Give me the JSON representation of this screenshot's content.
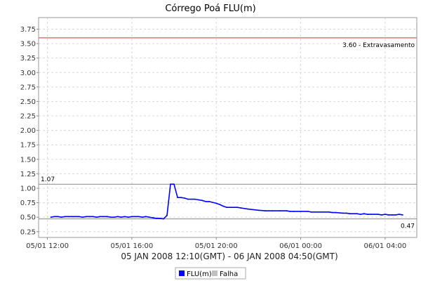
{
  "chart_data": {
    "type": "line",
    "title": "Córrego Poá FLU(m)",
    "xlabel": "05 JAN 2008 12:10(GMT) - 06 JAN 2008 04:50(GMT)",
    "ylabel": "",
    "x_range": [
      "05/01 11:35",
      "06/01 05:30"
    ],
    "ylim": [
      0.15,
      3.95
    ],
    "y_ticks": [
      "0.25",
      "0.50",
      "0.75",
      "1.00",
      "1.25",
      "1.50",
      "1.75",
      "2.00",
      "2.25",
      "2.50",
      "2.75",
      "3.00",
      "3.25",
      "3.50",
      "3.75"
    ],
    "x_ticks": [
      "05/01 12:00",
      "05/01 16:00",
      "05/01 20:00",
      "06/01 00:00",
      "06/01 04:00"
    ],
    "grid": true,
    "legend_position": "bottom",
    "legend": [
      {
        "name": "FLU(m)",
        "color": "#0000ff"
      },
      {
        "name": "Falha",
        "color": "#c0c0c0"
      }
    ],
    "reference_lines": [
      {
        "y": 3.6,
        "label": "3.60 - Extravasamento",
        "color": "#cc3333"
      },
      {
        "y": 1.07,
        "label": "1.07",
        "color": "#888888"
      },
      {
        "y": 0.47,
        "label": "0.47",
        "color": "#888888"
      }
    ],
    "series": [
      {
        "name": "FLU(m)",
        "color": "#0000ff",
        "points": [
          [
            "05/01 12:10",
            0.5
          ],
          [
            "05/01 12:20",
            0.51
          ],
          [
            "05/01 12:30",
            0.51
          ],
          [
            "05/01 12:40",
            0.5
          ],
          [
            "05/01 12:50",
            0.51
          ],
          [
            "05/01 13:00",
            0.51
          ],
          [
            "05/01 13:10",
            0.51
          ],
          [
            "05/01 13:20",
            0.51
          ],
          [
            "05/01 13:30",
            0.51
          ],
          [
            "05/01 13:40",
            0.5
          ],
          [
            "05/01 13:50",
            0.51
          ],
          [
            "05/01 14:00",
            0.51
          ],
          [
            "05/01 14:10",
            0.51
          ],
          [
            "05/01 14:20",
            0.5
          ],
          [
            "05/01 14:30",
            0.51
          ],
          [
            "05/01 14:40",
            0.51
          ],
          [
            "05/01 14:50",
            0.51
          ],
          [
            "05/01 15:00",
            0.5
          ],
          [
            "05/01 15:10",
            0.5
          ],
          [
            "05/01 15:20",
            0.51
          ],
          [
            "05/01 15:30",
            0.5
          ],
          [
            "05/01 15:40",
            0.51
          ],
          [
            "05/01 15:50",
            0.5
          ],
          [
            "05/01 16:00",
            0.51
          ],
          [
            "05/01 16:10",
            0.51
          ],
          [
            "05/01 16:20",
            0.51
          ],
          [
            "05/01 16:30",
            0.5
          ],
          [
            "05/01 16:40",
            0.51
          ],
          [
            "05/01 16:50",
            0.5
          ],
          [
            "05/01 17:00",
            0.49
          ],
          [
            "05/01 17:10",
            0.48
          ],
          [
            "05/01 17:20",
            0.48
          ],
          [
            "05/01 17:30",
            0.47
          ],
          [
            "05/01 17:40",
            0.53
          ],
          [
            "05/01 17:50",
            1.07
          ],
          [
            "05/01 18:00",
            1.07
          ],
          [
            "05/01 18:10",
            0.84
          ],
          [
            "05/01 18:20",
            0.84
          ],
          [
            "05/01 18:30",
            0.83
          ],
          [
            "05/01 18:40",
            0.81
          ],
          [
            "05/01 19:00",
            0.81
          ],
          [
            "05/01 19:10",
            0.8
          ],
          [
            "05/01 19:20",
            0.79
          ],
          [
            "05/01 19:30",
            0.77
          ],
          [
            "05/01 19:40",
            0.77
          ],
          [
            "05/01 20:00",
            0.74
          ],
          [
            "05/01 20:10",
            0.72
          ],
          [
            "05/01 20:20",
            0.69
          ],
          [
            "05/01 20:30",
            0.67
          ],
          [
            "05/01 21:00",
            0.67
          ],
          [
            "05/01 21:10",
            0.66
          ],
          [
            "05/01 21:30",
            0.64
          ],
          [
            "05/01 22:00",
            0.62
          ],
          [
            "05/01 22:20",
            0.61
          ],
          [
            "05/01 22:40",
            0.61
          ],
          [
            "05/01 23:00",
            0.61
          ],
          [
            "05/01 23:20",
            0.61
          ],
          [
            "05/01 23:30",
            0.6
          ],
          [
            "05/01 23:40",
            0.6
          ],
          [
            "06/01 00:00",
            0.6
          ],
          [
            "06/01 00:20",
            0.6
          ],
          [
            "06/01 00:30",
            0.59
          ],
          [
            "06/01 01:00",
            0.59
          ],
          [
            "06/01 01:20",
            0.59
          ],
          [
            "06/01 01:30",
            0.58
          ],
          [
            "06/01 01:40",
            0.58
          ],
          [
            "06/01 02:00",
            0.57
          ],
          [
            "06/01 02:10",
            0.57
          ],
          [
            "06/01 02:20",
            0.56
          ],
          [
            "06/01 02:40",
            0.56
          ],
          [
            "06/01 02:50",
            0.55
          ],
          [
            "06/01 03:00",
            0.56
          ],
          [
            "06/01 03:10",
            0.55
          ],
          [
            "06/01 03:20",
            0.55
          ],
          [
            "06/01 03:40",
            0.55
          ],
          [
            "06/01 03:50",
            0.54
          ],
          [
            "06/01 04:00",
            0.55
          ],
          [
            "06/01 04:10",
            0.54
          ],
          [
            "06/01 04:20",
            0.54
          ],
          [
            "06/01 04:30",
            0.54
          ],
          [
            "06/01 04:40",
            0.55
          ],
          [
            "06/01 04:50",
            0.54
          ]
        ]
      }
    ]
  }
}
